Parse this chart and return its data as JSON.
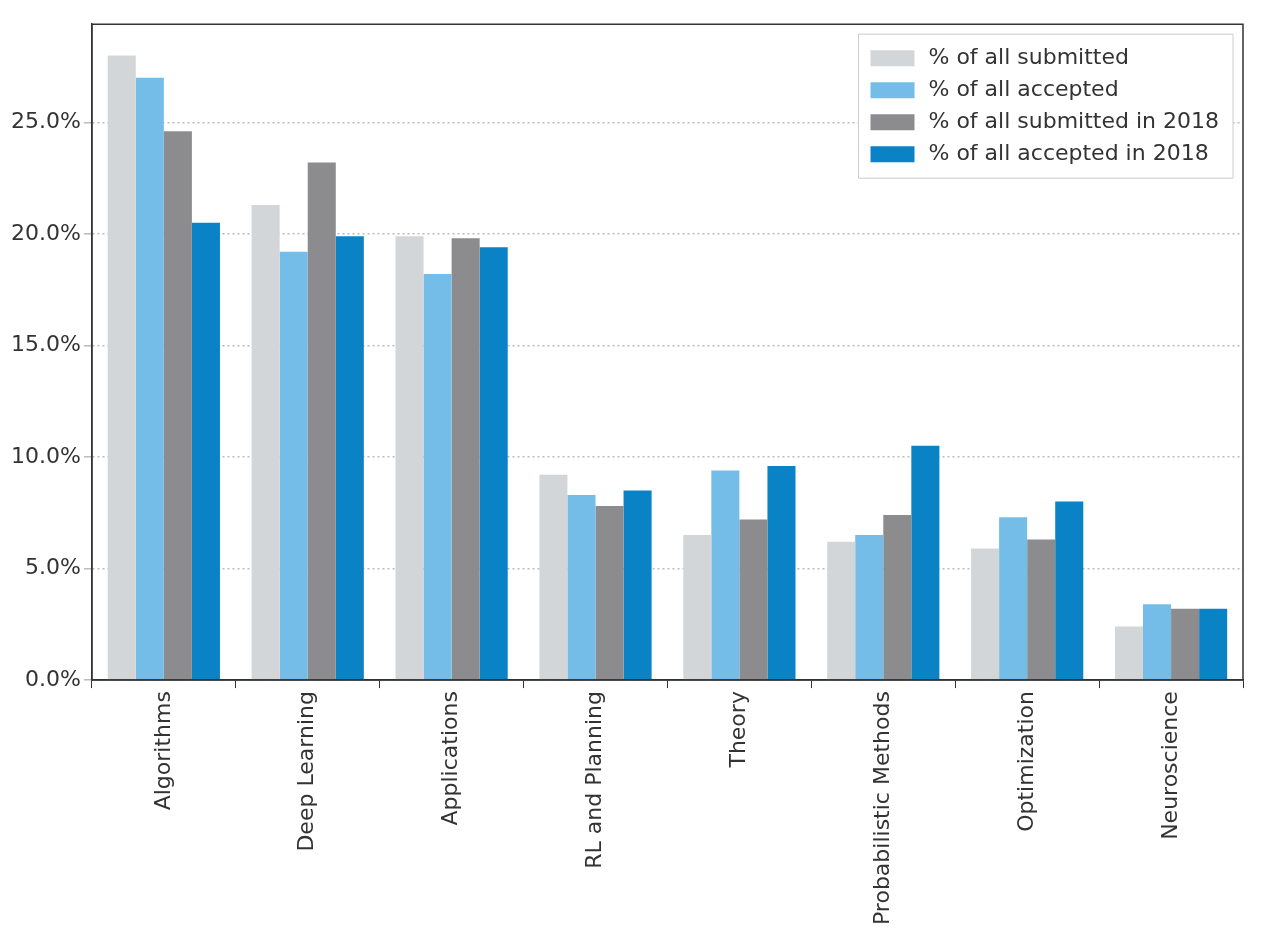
{
  "chart_data": {
    "type": "bar",
    "categories": [
      "Algorithms",
      "Deep Learning",
      "Applications",
      "RL and Planning",
      "Theory",
      "Probabilistic Methods",
      "Optimization",
      "Neuroscience"
    ],
    "series": [
      {
        "name": "% of all submitted",
        "color": "#d3d6d9",
        "values": [
          28.0,
          21.3,
          19.9,
          9.2,
          6.5,
          6.2,
          5.9,
          2.4
        ]
      },
      {
        "name": "% of all accepted",
        "color": "#74bde8",
        "values": [
          27.0,
          19.2,
          18.2,
          8.3,
          9.4,
          6.5,
          7.3,
          3.4
        ]
      },
      {
        "name": "% of all submitted in 2018",
        "color": "#8c8c8e",
        "values": [
          24.6,
          23.2,
          19.8,
          7.8,
          7.2,
          7.4,
          6.3,
          3.2
        ]
      },
      {
        "name": "% of all accepted in 2018",
        "color": "#0a82c6",
        "values": [
          20.5,
          19.9,
          19.4,
          8.5,
          9.6,
          10.5,
          8.0,
          3.2
        ]
      }
    ],
    "ylim": [
      0,
      29.4
    ],
    "yticks": [
      {
        "value": 0,
        "label": "0.0%"
      },
      {
        "value": 5,
        "label": "5.0%"
      },
      {
        "value": 10,
        "label": "10.0%"
      },
      {
        "value": 15,
        "label": "15.0%"
      },
      {
        "value": 20,
        "label": "20.0%"
      },
      {
        "value": 25,
        "label": "25.0%"
      }
    ],
    "grid": "y",
    "legend": "top right"
  }
}
